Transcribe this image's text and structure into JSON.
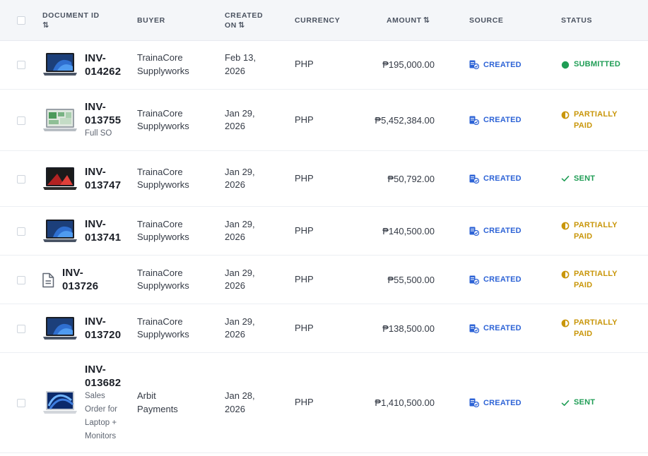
{
  "header": {
    "document_id": "DOCUMENT ID",
    "buyer": "BUYER",
    "created_on_line1": "CREATED",
    "created_on_line2": "ON",
    "currency": "CURRENCY",
    "amount": "AMOUNT",
    "source": "SOURCE",
    "status": "STATUS",
    "sort_glyph": "⇅"
  },
  "colors": {
    "source_blue": "#2d63d6",
    "submitted_green": "#1f9d55",
    "partially_paid_amber": "#c9960a",
    "sent_green": "#1f9d55"
  },
  "rows": [
    {
      "id_line1": "INV-",
      "id_line2": "014262",
      "subtitle": [],
      "thumbnail": "laptop-dark-blue-icon",
      "buyer_line1": "TrainaCore",
      "buyer_line2": "Supplyworks",
      "created_line1": "Feb 13,",
      "created_line2": "2026",
      "currency": "PHP",
      "amount": "₱195,000.00",
      "source": "CREATED",
      "status_line1": "SUBMITTED",
      "status_line2": "",
      "status_icon": "filled-circle-icon",
      "status_color": "#1f9d55"
    },
    {
      "id_line1": "INV-",
      "id_line2": "013755",
      "subtitle": [
        "Full SO"
      ],
      "thumbnail": "laptop-silver-green-icon",
      "buyer_line1": "TrainaCore",
      "buyer_line2": "Supplyworks",
      "created_line1": "Jan 29,",
      "created_line2": "2026",
      "currency": "PHP",
      "amount": "₱5,452,384.00",
      "source": "CREATED",
      "status_line1": "PARTIALLY",
      "status_line2": "PAID",
      "status_icon": "half-circle-icon",
      "status_color": "#c9960a"
    },
    {
      "id_line1": "INV-",
      "id_line2": "013747",
      "subtitle": [],
      "thumbnail": "laptop-black-red-icon",
      "buyer_line1": "TrainaCore",
      "buyer_line2": "Supplyworks",
      "created_line1": "Jan 29,",
      "created_line2": "2026",
      "currency": "PHP",
      "amount": "₱50,792.00",
      "source": "CREATED",
      "status_line1": "SENT",
      "status_line2": "",
      "status_icon": "check-icon",
      "status_color": "#1f9d55"
    },
    {
      "id_line1": "INV-",
      "id_line2": "013741",
      "subtitle": [],
      "thumbnail": "laptop-dark-blue-icon",
      "buyer_line1": "TrainaCore",
      "buyer_line2": "Supplyworks",
      "created_line1": "Jan 29,",
      "created_line2": "2026",
      "currency": "PHP",
      "amount": "₱140,500.00",
      "source": "CREATED",
      "status_line1": "PARTIALLY",
      "status_line2": "PAID",
      "status_icon": "half-circle-icon",
      "status_color": "#c9960a"
    },
    {
      "id_line1": "INV-",
      "id_line2": "013726",
      "subtitle": [],
      "thumbnail": "document-icon",
      "buyer_line1": "TrainaCore",
      "buyer_line2": "Supplyworks",
      "created_line1": "Jan 29,",
      "created_line2": "2026",
      "currency": "PHP",
      "amount": "₱55,500.00",
      "source": "CREATED",
      "status_line1": "PARTIALLY",
      "status_line2": "PAID",
      "status_icon": "half-circle-icon",
      "status_color": "#c9960a"
    },
    {
      "id_line1": "INV-",
      "id_line2": "013720",
      "subtitle": [],
      "thumbnail": "laptop-dark-blue-icon",
      "buyer_line1": "TrainaCore",
      "buyer_line2": "Supplyworks",
      "created_line1": "Jan 29,",
      "created_line2": "2026",
      "currency": "PHP",
      "amount": "₱138,500.00",
      "source": "CREATED",
      "status_line1": "PARTIALLY",
      "status_line2": "PAID",
      "status_icon": "half-circle-icon",
      "status_color": "#c9960a"
    },
    {
      "id_line1": "INV-",
      "id_line2": "013682",
      "subtitle": [
        "Sales",
        "Order for",
        "Laptop +",
        "Monitors"
      ],
      "thumbnail": "laptop-blue-swirl-icon",
      "buyer_line1": "Arbit",
      "buyer_line2": "Payments",
      "created_line1": "Jan 28,",
      "created_line2": "2026",
      "currency": "PHP",
      "amount": "₱1,410,500.00",
      "source": "CREATED",
      "status_line1": "SENT",
      "status_line2": "",
      "status_icon": "check-icon",
      "status_color": "#1f9d55"
    }
  ]
}
